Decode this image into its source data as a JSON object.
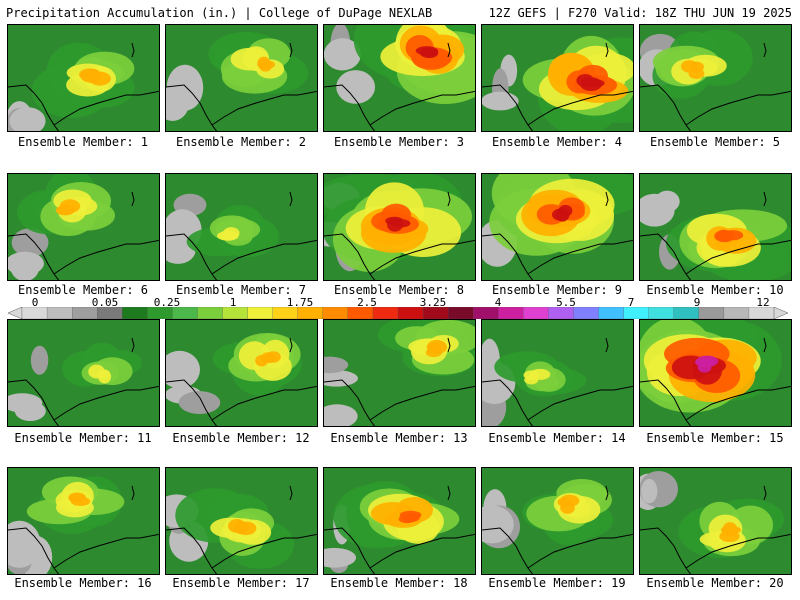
{
  "header": {
    "left": "Precipitation Accumulation (in.) | College of DuPage NEXLAB",
    "right": "12Z GEFS | F270 Valid: 18Z THU JUN 19 2025"
  },
  "panels": [
    {
      "label": "Ensemble Member: 1",
      "intensity": 0.45
    },
    {
      "label": "Ensemble Member: 2",
      "intensity": 0.55
    },
    {
      "label": "Ensemble Member: 3",
      "intensity": 0.8
    },
    {
      "label": "Ensemble Member: 4",
      "intensity": 0.75
    },
    {
      "label": "Ensemble Member: 5",
      "intensity": 0.5
    },
    {
      "label": "Ensemble Member: 6",
      "intensity": 0.5
    },
    {
      "label": "Ensemble Member: 7",
      "intensity": 0.35
    },
    {
      "label": "Ensemble Member: 8",
      "intensity": 0.7
    },
    {
      "label": "Ensemble Member: 9",
      "intensity": 0.75
    },
    {
      "label": "Ensemble Member: 10",
      "intensity": 0.65
    },
    {
      "label": "Ensemble Member: 11",
      "intensity": 0.4
    },
    {
      "label": "Ensemble Member: 12",
      "intensity": 0.55
    },
    {
      "label": "Ensemble Member: 13",
      "intensity": 0.5
    },
    {
      "label": "Ensemble Member: 14",
      "intensity": 0.3
    },
    {
      "label": "Ensemble Member: 15",
      "intensity": 0.85
    },
    {
      "label": "Ensemble Member: 16",
      "intensity": 0.5
    },
    {
      "label": "Ensemble Member: 17",
      "intensity": 0.45
    },
    {
      "label": "Ensemble Member: 18",
      "intensity": 0.65
    },
    {
      "label": "Ensemble Member: 19",
      "intensity": 0.45
    },
    {
      "label": "Ensemble Member: 20",
      "intensity": 0.55
    }
  ],
  "colorbar": {
    "labels": [
      "0",
      "0.05",
      "0.25",
      "1",
      "1.75",
      "2.5",
      "3.25",
      "4",
      "5.5",
      "7",
      "9",
      "12"
    ],
    "colors": [
      "#d9d9d9",
      "#bdbdbd",
      "#9e9e9e",
      "#7a7a7a",
      "#1e7a1e",
      "#2e9a2e",
      "#4cb84c",
      "#7ccf3c",
      "#b6e33a",
      "#eef03a",
      "#ffd21a",
      "#ffb000",
      "#ff8c00",
      "#ff5a00",
      "#ee2a10",
      "#cc1010",
      "#a00a1a",
      "#7a0a2a",
      "#a0106a",
      "#cc20a0",
      "#e040d0",
      "#b060f0",
      "#8080ff",
      "#40c0ff",
      "#40f0ff",
      "#40e0e0",
      "#30c0c0",
      "#9a9a9a",
      "#b8b8b8",
      "#d8d8d8"
    ]
  }
}
